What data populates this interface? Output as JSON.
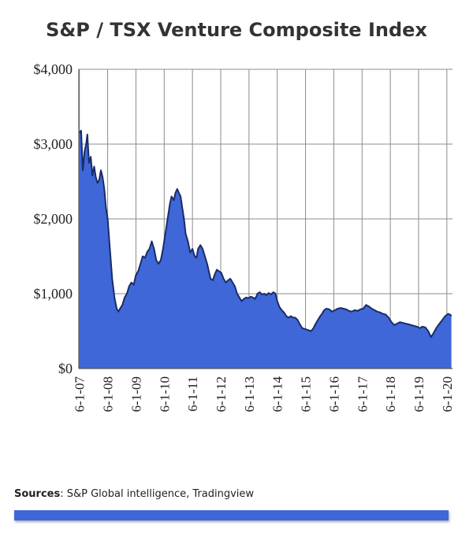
{
  "colors": {
    "fill": "#3f67d8",
    "line": "#1a2c66",
    "grid": "#8c8c8c",
    "bar": "#3f67d8"
  },
  "footer": {
    "sources_label": "Sources",
    "sources_text": ": S&P Global intelligence, Tradingview"
  },
  "chart_data": {
    "type": "area",
    "title": "S&P / TSX Venture Composite Index",
    "xlabel": "",
    "ylabel": "",
    "ylim": [
      0,
      4000
    ],
    "yticks": [
      {
        "value": 0,
        "label": "$0"
      },
      {
        "value": 1000,
        "label": "$1,000"
      },
      {
        "value": 2000,
        "label": "$2,000"
      },
      {
        "value": 3000,
        "label": "$3,000"
      },
      {
        "value": 4000,
        "label": "$4,000"
      }
    ],
    "xticks": [
      "6-1-07",
      "6-1-08",
      "6-1-09",
      "6-1-10",
      "6-1-11",
      "6-1-12",
      "6-1-13",
      "6-1-14",
      "6-1-15",
      "6-1-16",
      "6-1-17",
      "6-1-18",
      "6-1-19",
      "6-1-20"
    ],
    "xlim": [
      2007.4,
      2020.62
    ],
    "grid": true,
    "series": [
      {
        "values": [
          [
            2007.42,
            3150
          ],
          [
            2007.48,
            3180
          ],
          [
            2007.54,
            2650
          ],
          [
            2007.6,
            2900
          ],
          [
            2007.66,
            3000
          ],
          [
            2007.7,
            3130
          ],
          [
            2007.76,
            2750
          ],
          [
            2007.82,
            2830
          ],
          [
            2007.88,
            2580
          ],
          [
            2007.94,
            2700
          ],
          [
            2008.0,
            2560
          ],
          [
            2008.06,
            2480
          ],
          [
            2008.12,
            2520
          ],
          [
            2008.18,
            2650
          ],
          [
            2008.24,
            2560
          ],
          [
            2008.3,
            2400
          ],
          [
            2008.36,
            2150
          ],
          [
            2008.42,
            2000
          ],
          [
            2008.5,
            1600
          ],
          [
            2008.58,
            1200
          ],
          [
            2008.66,
            950
          ],
          [
            2008.74,
            800
          ],
          [
            2008.8,
            760
          ],
          [
            2008.86,
            800
          ],
          [
            2008.94,
            850
          ],
          [
            2009.02,
            950
          ],
          [
            2009.1,
            1000
          ],
          [
            2009.18,
            1100
          ],
          [
            2009.26,
            1150
          ],
          [
            2009.34,
            1120
          ],
          [
            2009.42,
            1250
          ],
          [
            2009.5,
            1300
          ],
          [
            2009.58,
            1400
          ],
          [
            2009.66,
            1500
          ],
          [
            2009.74,
            1480
          ],
          [
            2009.82,
            1560
          ],
          [
            2009.9,
            1600
          ],
          [
            2009.98,
            1700
          ],
          [
            2010.06,
            1600
          ],
          [
            2010.14,
            1450
          ],
          [
            2010.22,
            1400
          ],
          [
            2010.3,
            1450
          ],
          [
            2010.38,
            1600
          ],
          [
            2010.46,
            1800
          ],
          [
            2010.54,
            2000
          ],
          [
            2010.62,
            2200
          ],
          [
            2010.68,
            2300
          ],
          [
            2010.76,
            2250
          ],
          [
            2010.82,
            2350
          ],
          [
            2010.88,
            2400
          ],
          [
            2010.94,
            2350
          ],
          [
            2011.0,
            2300
          ],
          [
            2011.06,
            2150
          ],
          [
            2011.12,
            2000
          ],
          [
            2011.18,
            1800
          ],
          [
            2011.26,
            1700
          ],
          [
            2011.34,
            1550
          ],
          [
            2011.42,
            1600
          ],
          [
            2011.5,
            1500
          ],
          [
            2011.56,
            1480
          ],
          [
            2011.62,
            1600
          ],
          [
            2011.7,
            1650
          ],
          [
            2011.78,
            1600
          ],
          [
            2011.86,
            1500
          ],
          [
            2011.94,
            1400
          ],
          [
            2012.0,
            1300
          ],
          [
            2012.06,
            1200
          ],
          [
            2012.14,
            1180
          ],
          [
            2012.2,
            1250
          ],
          [
            2012.28,
            1320
          ],
          [
            2012.36,
            1300
          ],
          [
            2012.44,
            1280
          ],
          [
            2012.52,
            1200
          ],
          [
            2012.6,
            1150
          ],
          [
            2012.68,
            1180
          ],
          [
            2012.76,
            1200
          ],
          [
            2012.84,
            1150
          ],
          [
            2012.92,
            1100
          ],
          [
            2013.0,
            1000
          ],
          [
            2013.08,
            950
          ],
          [
            2013.16,
            900
          ],
          [
            2013.24,
            930
          ],
          [
            2013.32,
            950
          ],
          [
            2013.4,
            940
          ],
          [
            2013.48,
            960
          ],
          [
            2013.56,
            950
          ],
          [
            2013.64,
            930
          ],
          [
            2013.72,
            1000
          ],
          [
            2013.8,
            1020
          ],
          [
            2013.88,
            990
          ],
          [
            2013.96,
            1000
          ],
          [
            2014.04,
            980
          ],
          [
            2014.12,
            1010
          ],
          [
            2014.2,
            990
          ],
          [
            2014.28,
            1020
          ],
          [
            2014.36,
            1000
          ],
          [
            2014.42,
            900
          ],
          [
            2014.5,
            820
          ],
          [
            2014.58,
            780
          ],
          [
            2014.66,
            750
          ],
          [
            2014.74,
            700
          ],
          [
            2014.82,
            680
          ],
          [
            2014.9,
            700
          ],
          [
            2014.98,
            680
          ],
          [
            2015.06,
            680
          ],
          [
            2015.14,
            650
          ],
          [
            2015.22,
            590
          ],
          [
            2015.3,
            540
          ],
          [
            2015.38,
            530
          ],
          [
            2015.46,
            520
          ],
          [
            2015.54,
            510
          ],
          [
            2015.62,
            500
          ],
          [
            2015.7,
            540
          ],
          [
            2015.78,
            600
          ],
          [
            2015.86,
            650
          ],
          [
            2015.94,
            700
          ],
          [
            2016.0,
            730
          ],
          [
            2016.08,
            780
          ],
          [
            2016.16,
            800
          ],
          [
            2016.26,
            790
          ],
          [
            2016.36,
            760
          ],
          [
            2016.46,
            780
          ],
          [
            2016.56,
            800
          ],
          [
            2016.66,
            810
          ],
          [
            2016.76,
            800
          ],
          [
            2016.86,
            790
          ],
          [
            2016.96,
            770
          ],
          [
            2017.06,
            760
          ],
          [
            2017.16,
            780
          ],
          [
            2017.26,
            770
          ],
          [
            2017.36,
            790
          ],
          [
            2017.46,
            800
          ],
          [
            2017.56,
            850
          ],
          [
            2017.66,
            830
          ],
          [
            2017.76,
            800
          ],
          [
            2017.86,
            780
          ],
          [
            2017.96,
            760
          ],
          [
            2018.06,
            750
          ],
          [
            2018.16,
            730
          ],
          [
            2018.26,
            720
          ],
          [
            2018.36,
            680
          ],
          [
            2018.46,
            620
          ],
          [
            2018.56,
            580
          ],
          [
            2018.66,
            600
          ],
          [
            2018.76,
            620
          ],
          [
            2018.86,
            610
          ],
          [
            2018.96,
            600
          ],
          [
            2019.06,
            590
          ],
          [
            2019.16,
            580
          ],
          [
            2019.26,
            570
          ],
          [
            2019.36,
            560
          ],
          [
            2019.46,
            540
          ],
          [
            2019.56,
            560
          ],
          [
            2019.66,
            550
          ],
          [
            2019.76,
            500
          ],
          [
            2019.86,
            420
          ],
          [
            2019.96,
            480
          ],
          [
            2020.06,
            550
          ],
          [
            2020.16,
            600
          ],
          [
            2020.26,
            650
          ],
          [
            2020.36,
            700
          ],
          [
            2020.46,
            730
          ],
          [
            2020.54,
            720
          ],
          [
            2020.58,
            700
          ]
        ]
      }
    ]
  }
}
